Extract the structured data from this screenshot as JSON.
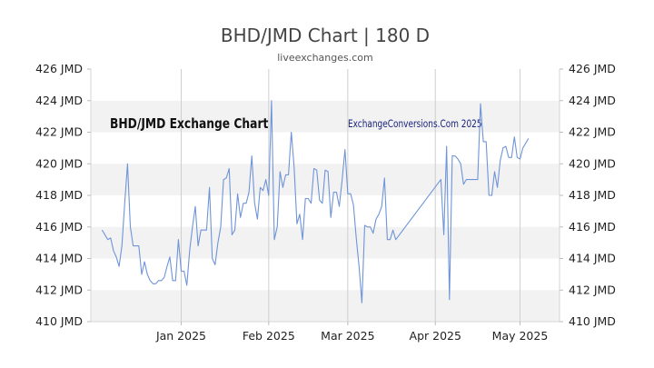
{
  "chart_data": {
    "type": "line",
    "title": "BHD/JMD Chart | 180 D",
    "subtitle": "liveexchanges.com",
    "watermark_left": "BHD/JMD Exchange Chart",
    "watermark_right": "ExchangeConversions.Com 2025",
    "ylim": [
      410,
      426
    ],
    "y_ticks": [
      "410 JMD",
      "412 JMD",
      "414 JMD",
      "416 JMD",
      "418 JMD",
      "420 JMD",
      "422 JMD",
      "424 JMD",
      "426 JMD"
    ],
    "x_ticks": [
      {
        "label": "Jan 2025",
        "day": 32
      },
      {
        "label": "Feb 2025",
        "day": 63
      },
      {
        "label": "Mar 2025",
        "day": 91
      },
      {
        "label": "Apr 2025",
        "day": 122
      },
      {
        "label": "May 2025",
        "day": 152
      }
    ],
    "xlim": [
      0,
      166
    ],
    "grid": true,
    "line_color": "#6f94d8",
    "band_color": "#f2f2f2",
    "series": [
      {
        "values": [
          [
            4,
            415.8
          ],
          [
            5,
            415.5
          ],
          [
            6,
            415.2
          ],
          [
            7,
            415.3
          ],
          [
            8,
            414.5
          ],
          [
            9,
            414.1
          ],
          [
            10,
            413.5
          ],
          [
            11,
            414.8
          ],
          [
            12,
            417.5
          ],
          [
            13,
            420.0
          ],
          [
            14,
            416.0
          ],
          [
            15,
            414.8
          ],
          [
            16,
            414.8
          ],
          [
            17,
            414.8
          ],
          [
            18,
            413.0
          ],
          [
            19,
            413.8
          ],
          [
            20,
            413.0
          ],
          [
            21,
            412.6
          ],
          [
            22,
            412.4
          ],
          [
            23,
            412.4
          ],
          [
            24,
            412.6
          ],
          [
            25,
            412.6
          ],
          [
            26,
            412.8
          ],
          [
            27,
            413.5
          ],
          [
            28,
            414.1
          ],
          [
            29,
            412.6
          ],
          [
            30,
            412.6
          ],
          [
            31,
            415.2
          ],
          [
            32,
            413.2
          ],
          [
            33,
            413.2
          ],
          [
            34,
            412.3
          ],
          [
            35,
            414.5
          ],
          [
            36,
            416.0
          ],
          [
            37,
            417.3
          ],
          [
            38,
            414.8
          ],
          [
            39,
            415.8
          ],
          [
            40,
            415.8
          ],
          [
            41,
            415.8
          ],
          [
            42,
            418.5
          ],
          [
            43,
            414.0
          ],
          [
            44,
            413.6
          ],
          [
            45,
            415.0
          ],
          [
            46,
            416.0
          ],
          [
            47,
            419.0
          ],
          [
            48,
            419.1
          ],
          [
            49,
            419.7
          ],
          [
            50,
            415.5
          ],
          [
            51,
            415.8
          ],
          [
            52,
            418.1
          ],
          [
            53,
            416.6
          ],
          [
            54,
            417.5
          ],
          [
            55,
            417.5
          ],
          [
            56,
            418.2
          ],
          [
            57,
            420.5
          ],
          [
            58,
            417.5
          ],
          [
            59,
            416.5
          ],
          [
            60,
            418.5
          ],
          [
            61,
            418.3
          ],
          [
            62,
            419.0
          ],
          [
            63,
            418.0
          ],
          [
            64,
            424.0
          ],
          [
            65,
            415.2
          ],
          [
            66,
            416.0
          ],
          [
            67,
            419.5
          ],
          [
            68,
            418.5
          ],
          [
            69,
            419.3
          ],
          [
            70,
            419.3
          ],
          [
            71,
            422.0
          ],
          [
            72,
            419.8
          ],
          [
            73,
            416.2
          ],
          [
            74,
            416.8
          ],
          [
            75,
            415.2
          ],
          [
            76,
            417.8
          ],
          [
            77,
            417.8
          ],
          [
            78,
            417.5
          ],
          [
            79,
            419.7
          ],
          [
            80,
            419.6
          ],
          [
            81,
            417.7
          ],
          [
            82,
            417.5
          ],
          [
            83,
            419.6
          ],
          [
            84,
            419.5
          ],
          [
            85,
            416.6
          ],
          [
            86,
            418.2
          ],
          [
            87,
            418.2
          ],
          [
            88,
            417.3
          ],
          [
            89,
            419.0
          ],
          [
            90,
            420.9
          ],
          [
            91,
            418.1
          ],
          [
            92,
            418.1
          ],
          [
            93,
            417.4
          ],
          [
            94,
            415.3
          ],
          [
            95,
            413.5
          ],
          [
            96,
            411.2
          ],
          [
            97,
            416.1
          ],
          [
            98,
            416.0
          ],
          [
            99,
            416.0
          ],
          [
            100,
            415.6
          ],
          [
            101,
            416.5
          ],
          [
            102,
            416.8
          ],
          [
            103,
            417.3
          ],
          [
            104,
            419.1
          ],
          [
            105,
            415.2
          ],
          [
            106,
            415.2
          ],
          [
            107,
            415.8
          ],
          [
            108,
            415.2
          ],
          [
            124,
            419.0
          ],
          [
            125,
            415.5
          ],
          [
            126,
            421.1
          ],
          [
            127,
            411.4
          ],
          [
            128,
            420.5
          ],
          [
            129,
            420.5
          ],
          [
            130,
            420.3
          ],
          [
            131,
            420.0
          ],
          [
            132,
            418.7
          ],
          [
            133,
            419.0
          ],
          [
            137,
            419.0
          ],
          [
            138,
            423.8
          ],
          [
            139,
            421.4
          ],
          [
            140,
            421.4
          ],
          [
            141,
            418.0
          ],
          [
            142,
            418.0
          ],
          [
            143,
            419.5
          ],
          [
            144,
            418.5
          ],
          [
            145,
            420.2
          ],
          [
            146,
            421.0
          ],
          [
            147,
            421.1
          ],
          [
            148,
            420.4
          ],
          [
            149,
            420.4
          ],
          [
            150,
            421.7
          ],
          [
            151,
            420.4
          ],
          [
            152,
            420.3
          ],
          [
            153,
            421.0
          ],
          [
            154,
            421.3
          ],
          [
            155,
            421.6
          ]
        ]
      }
    ]
  }
}
